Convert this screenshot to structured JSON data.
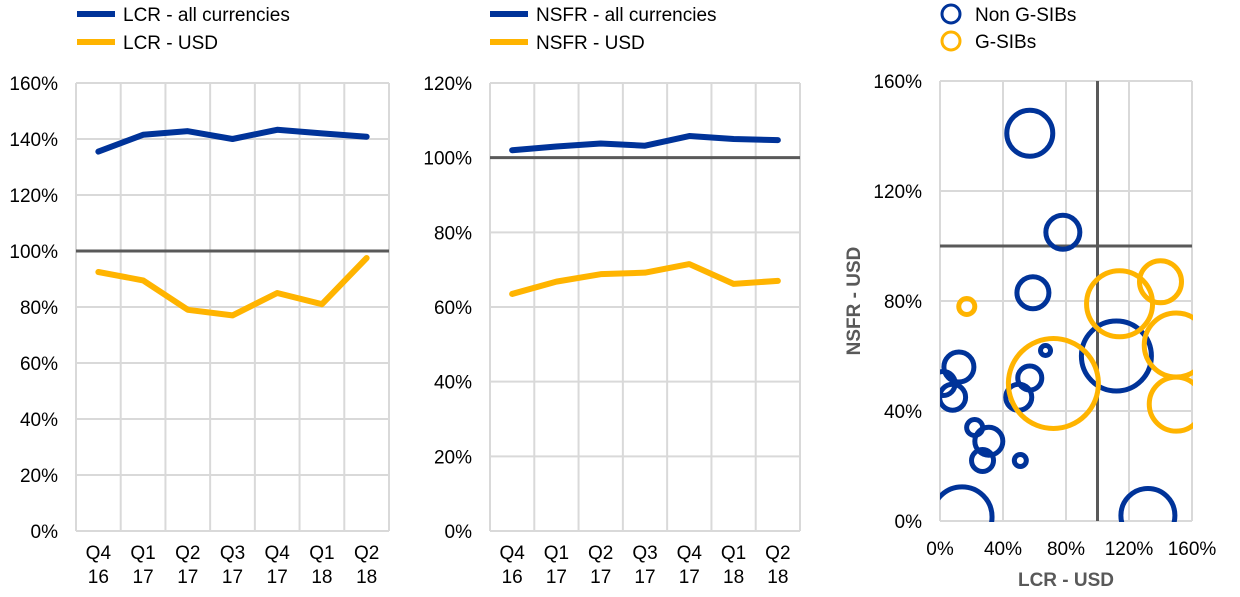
{
  "chart_data": [
    {
      "type": "line",
      "categories": [
        [
          "Q4",
          "16"
        ],
        [
          "Q1",
          "17"
        ],
        [
          "Q2",
          "17"
        ],
        [
          "Q3",
          "17"
        ],
        [
          "Q4",
          "17"
        ],
        [
          "Q1",
          "18"
        ],
        [
          "Q2",
          "18"
        ]
      ],
      "ylim": [
        0,
        160
      ],
      "yticks": [
        "0%",
        "20%",
        "40%",
        "60%",
        "80%",
        "100%",
        "120%",
        "140%",
        "160%"
      ],
      "reference_line": 100,
      "grid": true,
      "legend_position": "top",
      "series": [
        {
          "name": "LCR - all currencies",
          "color": "#003399",
          "values": [
            135.5,
            141.5,
            142.8,
            140.0,
            143.3,
            142.0,
            140.8
          ]
        },
        {
          "name": "LCR - USD",
          "color": "#FFB400",
          "values": [
            92.5,
            89.5,
            79.0,
            77.0,
            85.0,
            81.0,
            97.5
          ]
        }
      ]
    },
    {
      "type": "line",
      "categories": [
        [
          "Q4",
          "16"
        ],
        [
          "Q1",
          "17"
        ],
        [
          "Q2",
          "17"
        ],
        [
          "Q3",
          "17"
        ],
        [
          "Q4",
          "17"
        ],
        [
          "Q1",
          "18"
        ],
        [
          "Q2",
          "18"
        ]
      ],
      "ylim": [
        0,
        120
      ],
      "yticks": [
        "0%",
        "20%",
        "40%",
        "60%",
        "80%",
        "100%",
        "120%"
      ],
      "reference_line": 100,
      "grid": true,
      "legend_position": "top",
      "series": [
        {
          "name": "NSFR - all currencies",
          "color": "#003399",
          "values": [
            102.0,
            103.0,
            103.8,
            103.2,
            105.8,
            105.0,
            104.7
          ]
        },
        {
          "name": "NSFR - USD",
          "color": "#FFB400",
          "values": [
            63.5,
            66.8,
            68.8,
            69.2,
            71.5,
            66.2,
            67.0
          ]
        }
      ]
    },
    {
      "type": "scatter",
      "xlabel": "LCR - USD",
      "ylabel": "NSFR - USD",
      "xlim": [
        0,
        160
      ],
      "ylim": [
        0,
        160
      ],
      "xticks": [
        "0%",
        "40%",
        "80%",
        "120%",
        "160%"
      ],
      "yticks": [
        "0%",
        "40%",
        "80%",
        "120%",
        "160%"
      ],
      "reference_x": 100,
      "reference_y": 100,
      "grid": true,
      "legend_position": "top",
      "series": [
        {
          "name": "Non G-SIBs",
          "color": "#003399",
          "points": [
            {
              "x": 57,
              "y": 141,
              "size": 23
            },
            {
              "x": 78,
              "y": 105,
              "size": 17
            },
            {
              "x": 59,
              "y": 83,
              "size": 16
            },
            {
              "x": 12,
              "y": 56,
              "size": 15
            },
            {
              "x": 67,
              "y": 62,
              "size": 5
            },
            {
              "x": 57,
              "y": 52,
              "size": 12
            },
            {
              "x": 50,
              "y": 45,
              "size": 13
            },
            {
              "x": 8,
              "y": 45,
              "size": 13
            },
            {
              "x": 2,
              "y": 50,
              "size": 12
            },
            {
              "x": 22,
              "y": 34,
              "size": 8
            },
            {
              "x": 31,
              "y": 29,
              "size": 14
            },
            {
              "x": 27,
              "y": 22,
              "size": 11
            },
            {
              "x": 51,
              "y": 22,
              "size": 6
            },
            {
              "x": 14,
              "y": 1.5,
              "size": 30
            },
            {
              "x": 132,
              "y": 2,
              "size": 27
            },
            {
              "x": 112,
              "y": 60,
              "size": 35
            }
          ]
        },
        {
          "name": "G-SIBs",
          "color": "#FFB400",
          "points": [
            {
              "x": 17,
              "y": 78,
              "size": 8
            },
            {
              "x": 114,
              "y": 79,
              "size": 33
            },
            {
              "x": 140,
              "y": 87,
              "size": 21
            },
            {
              "x": 150,
              "y": 64,
              "size": 32
            },
            {
              "x": 150,
              "y": 42.5,
              "size": 27
            },
            {
              "x": 72,
              "y": 50,
              "size": 45
            }
          ]
        }
      ]
    }
  ]
}
